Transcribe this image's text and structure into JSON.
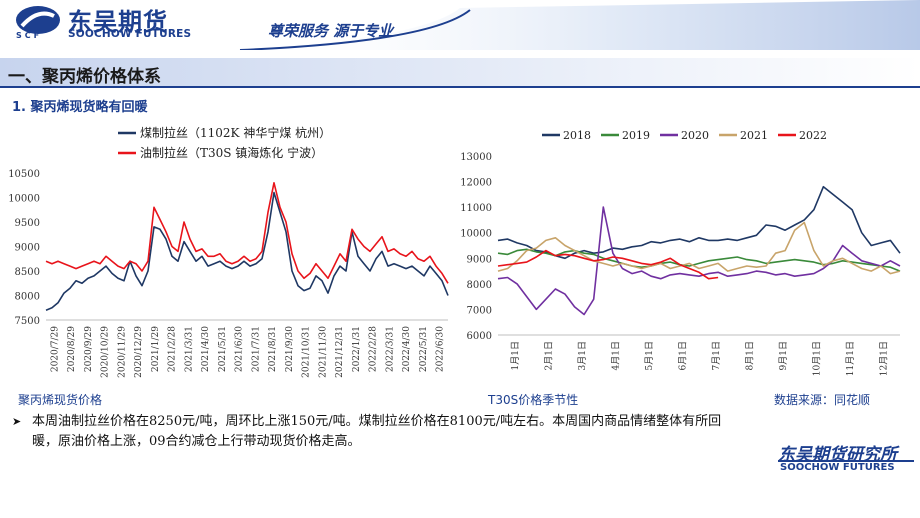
{
  "header": {
    "brand_cn": "东吴期货",
    "brand_en": "SOOCHOW FUTURES",
    "logo_abbr": "SCF",
    "slogan": "尊荣服务  源于专业"
  },
  "section": {
    "title": "一、聚丙烯价格体系",
    "subtitle": "1. 聚丙烯现货略有回暖"
  },
  "captions": {
    "left": "聚丙烯现货价格",
    "right": "T30S价格季节性",
    "source": "数据来源：同花顺"
  },
  "note": "本周油制拉丝价格在8250元/吨，周环比上涨150元/吨。煤制拉丝价格在8100元/吨左右。本周国内商品情绪整体有所回暖，原油价格上涨，09合约减仓上行带动现货价格走高。",
  "footer": {
    "cn": "东吴期货研究所",
    "en": "SOOCHOW FUTURES"
  },
  "colors": {
    "brand": "#1d3f8f",
    "coal": "#1f3864",
    "oil": "#e8141b",
    "y2018": "#1f3864",
    "y2019": "#3a8a3a",
    "y2020": "#7030a0",
    "y2021": "#c8a46a",
    "y2022": "#e8141b"
  },
  "chart_data": [
    {
      "type": "line",
      "ylim": [
        7500,
        10500
      ],
      "yticks": [
        "7500",
        "8000",
        "8500",
        "9000",
        "9500",
        "10000",
        "10500"
      ],
      "xticks": [
        "2020/7/29",
        "2020/8/29",
        "2020/9/29",
        "2020/10/29",
        "2020/11/29",
        "2020/12/29",
        "2021/1/29",
        "2021/2/28",
        "2021/3/31",
        "2021/4/30",
        "2021/5/31",
        "2021/6/30",
        "2021/7/31",
        "2021/8/31",
        "2021/9/30",
        "2021/10/31",
        "2021/11/30",
        "2021/12/31",
        "2022/1/31",
        "2022/2/28",
        "2022/3/31",
        "2022/4/30",
        "2022/5/31",
        "2022/6/30"
      ],
      "series": [
        {
          "name": "煤制拉丝（1102K 神华宁煤 杭州）",
          "color_key": "coal",
          "values": [
            7700,
            7750,
            7850,
            8050,
            8150,
            8300,
            8250,
            8350,
            8400,
            8500,
            8600,
            8450,
            8350,
            8300,
            8700,
            8400,
            8200,
            8500,
            9400,
            9350,
            9150,
            8800,
            8700,
            9100,
            8900,
            8700,
            8800,
            8600,
            8650,
            8700,
            8600,
            8550,
            8600,
            8700,
            8600,
            8650,
            8750,
            9300,
            10100,
            9700,
            9300,
            8500,
            8200,
            8100,
            8150,
            8400,
            8300,
            8050,
            8400,
            8600,
            8500,
            9300,
            8800,
            8650,
            8500,
            8750,
            8900,
            8600,
            8650,
            8600,
            8550,
            8600,
            8500,
            8400,
            8600,
            8450,
            8300,
            8000
          ]
        },
        {
          "name": "油制拉丝（T30S 镇海炼化 宁波）",
          "color_key": "oil",
          "values": [
            8700,
            8650,
            8700,
            8650,
            8600,
            8550,
            8600,
            8650,
            8700,
            8650,
            8800,
            8700,
            8600,
            8550,
            8700,
            8650,
            8500,
            8700,
            9800,
            9550,
            9300,
            9000,
            8900,
            9500,
            9150,
            8900,
            8950,
            8800,
            8800,
            8850,
            8700,
            8650,
            8700,
            8800,
            8700,
            8750,
            8900,
            9700,
            10300,
            9800,
            9500,
            8850,
            8500,
            8350,
            8450,
            8650,
            8500,
            8350,
            8600,
            8850,
            8700,
            9350,
            9150,
            9000,
            8900,
            9050,
            9200,
            8900,
            8950,
            8850,
            8800,
            8900,
            8750,
            8700,
            8800,
            8600,
            8450,
            8250
          ]
        }
      ]
    },
    {
      "type": "line",
      "ylim": [
        6000,
        13000
      ],
      "yticks": [
        "6000",
        "7000",
        "8000",
        "9000",
        "10000",
        "11000",
        "12000",
        "13000"
      ],
      "xticks": [
        "1月1日",
        "2月1日",
        "3月1日",
        "4月1日",
        "5月1日",
        "6月1日",
        "7月1日",
        "8月1日",
        "9月1日",
        "10月1日",
        "11月1日",
        "12月1日"
      ],
      "series": [
        {
          "name": "2018",
          "color_key": "y2018",
          "values": [
            9700,
            9750,
            9600,
            9500,
            9300,
            9250,
            9100,
            9000,
            9200,
            9300,
            9200,
            9250,
            9400,
            9350,
            9450,
            9500,
            9650,
            9600,
            9700,
            9750,
            9650,
            9800,
            9700,
            9700,
            9750,
            9700,
            9800,
            9900,
            10300,
            10250,
            10100,
            10300,
            10500,
            10900,
            11800,
            11500,
            11200,
            10900,
            10000,
            9500,
            9600,
            9700,
            9200
          ]
        },
        {
          "name": "2019",
          "color_key": "y2019",
          "values": [
            9200,
            9150,
            9300,
            9350,
            9250,
            9200,
            9100,
            9250,
            9300,
            9200,
            9150,
            9000,
            8900,
            8800,
            8700,
            8650,
            8700,
            8800,
            8850,
            8750,
            8700,
            8800,
            8900,
            8950,
            9000,
            9050,
            8950,
            8900,
            8800,
            8850,
            8900,
            8950,
            8900,
            8850,
            8750,
            8800,
            8900,
            8850,
            8800,
            8750,
            8700,
            8650,
            8500
          ]
        },
        {
          "name": "2020",
          "color_key": "y2020",
          "values": [
            8200,
            8250,
            8000,
            7500,
            7000,
            7400,
            7800,
            7600,
            7100,
            6800,
            7400,
            11000,
            9200,
            8600,
            8400,
            8500,
            8300,
            8200,
            8350,
            8400,
            8350,
            8300,
            8400,
            8450,
            8300,
            8350,
            8400,
            8500,
            8450,
            8350,
            8400,
            8300,
            8350,
            8400,
            8600,
            8900,
            9500,
            9200,
            8900,
            8800,
            8700,
            8900,
            8700
          ]
        },
        {
          "name": "2021",
          "color_key": "y2021",
          "values": [
            8500,
            8600,
            8900,
            9300,
            9400,
            9700,
            9800,
            9500,
            9300,
            9100,
            8900,
            8800,
            8700,
            8800,
            8700,
            8600,
            8700,
            8800,
            8600,
            8700,
            8800,
            8600,
            8700,
            8800,
            8500,
            8600,
            8700,
            8650,
            8700,
            9200,
            9300,
            10100,
            10400,
            9300,
            8700,
            8900,
            9000,
            8800,
            8600,
            8500,
            8700,
            8400,
            8500
          ]
        },
        {
          "name": "2022",
          "color_key": "y2022",
          "values": [
            8700,
            8750,
            8800,
            8850,
            9050,
            9300,
            9100,
            9150,
            9100,
            9000,
            8900,
            8950,
            9050,
            9000,
            8900,
            8800,
            8750,
            8850,
            9000,
            8750,
            8600,
            8450,
            8200,
            8250
          ]
        }
      ]
    }
  ]
}
